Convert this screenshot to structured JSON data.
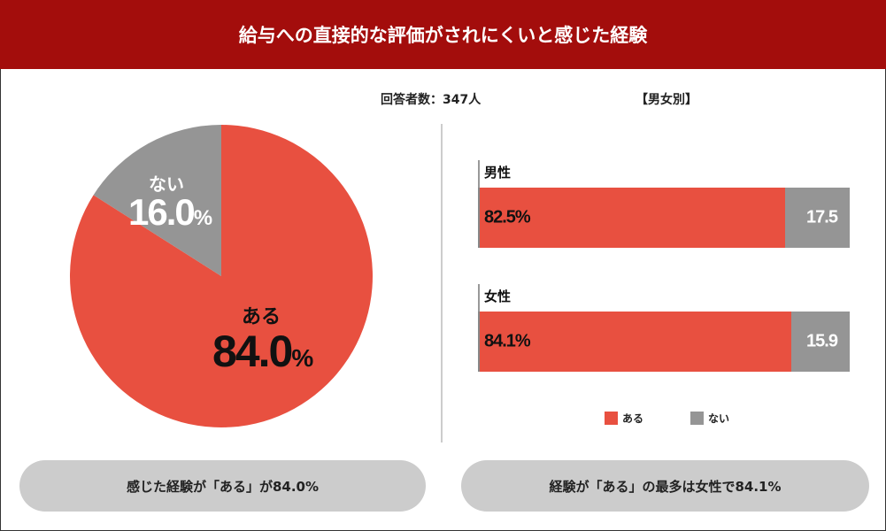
{
  "title": "給与への直接的な評価がされにくいと感じた経験",
  "respondents": "回答者数：347人",
  "breakdown_label": "【男女別】",
  "colors": {
    "yes": "#e85040",
    "no": "#959595",
    "header": "#a30d0c"
  },
  "chart_data": [
    {
      "type": "pie",
      "slices": [
        {
          "label": "ある",
          "value": 84.0,
          "display": "84.0",
          "color": "#e85040"
        },
        {
          "label": "ない",
          "value": 16.0,
          "display": "16.0",
          "color": "#959595"
        }
      ],
      "unit": "%"
    },
    {
      "type": "bar",
      "orientation": "horizontal",
      "stacked": true,
      "categories": [
        "男性",
        "女性"
      ],
      "series": [
        {
          "name": "ある",
          "values": [
            82.5,
            84.1
          ],
          "labels": [
            "82.5%",
            "84.1%"
          ]
        },
        {
          "name": "ない",
          "values": [
            17.5,
            15.9
          ],
          "labels": [
            "17.5",
            "15.9"
          ]
        }
      ],
      "legend": "bottom"
    }
  ],
  "summary_left": "感じた経験が「ある」が84.0%",
  "summary_right": "経験が「ある」の最多は女性で84.1%"
}
